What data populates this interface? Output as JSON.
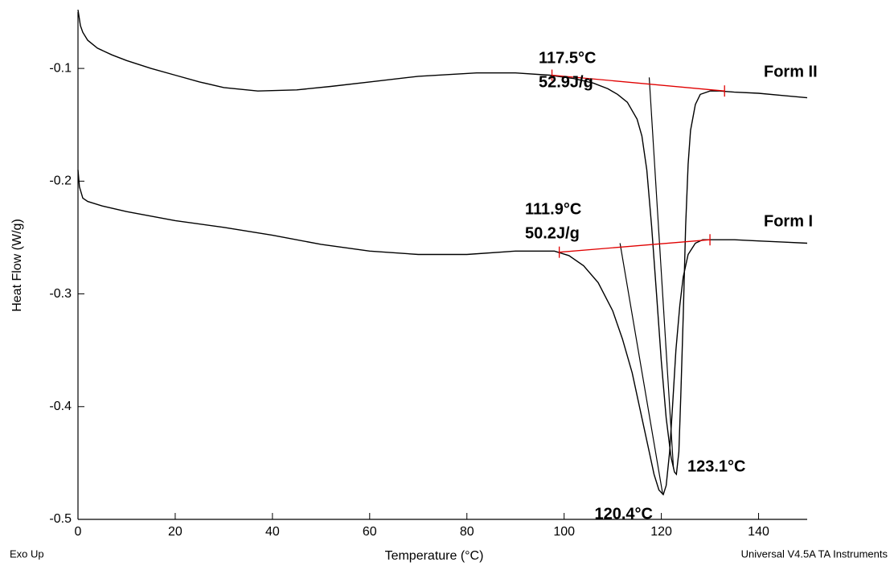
{
  "chart_data": {
    "type": "line",
    "x_label": "Temperature (°C)",
    "y_label": "Heat Flow (W/g)",
    "footer_left": "Exo Up",
    "footer_right": "Universal V4.5A TA Instruments",
    "xlim": [
      0,
      150
    ],
    "xticks": [
      0,
      20,
      40,
      60,
      80,
      100,
      120,
      140
    ],
    "ylim": [
      -0.5,
      -0.05
    ],
    "yticks": [
      -0.1,
      -0.2,
      -0.3,
      -0.4,
      -0.5
    ],
    "annotation_color": "#e00000",
    "annotations": [
      "117.5°C",
      "52.9J/g",
      "111.9°C",
      "50.2J/g",
      "120.4°C",
      "123.1°C"
    ],
    "series": [
      {
        "name": "Form II",
        "color": "#000000",
        "x": [
          0,
          0.5,
          1,
          2,
          4,
          7,
          10,
          15,
          20,
          25,
          30,
          37,
          45,
          52,
          60,
          70,
          82,
          90,
          97,
          102,
          106,
          109,
          111,
          113,
          115,
          116,
          117,
          118,
          119,
          120,
          121,
          122,
          122.7,
          123.1,
          123.6,
          124,
          124.5,
          125,
          125.5,
          126,
          127,
          128,
          130,
          132,
          135,
          140,
          145,
          150
        ],
        "values": [
          -0.048,
          -0.062,
          -0.068,
          -0.075,
          -0.082,
          -0.088,
          -0.093,
          -0.1,
          -0.106,
          -0.112,
          -0.117,
          -0.12,
          -0.119,
          -0.116,
          -0.112,
          -0.107,
          -0.104,
          -0.104,
          -0.106,
          -0.109,
          -0.113,
          -0.118,
          -0.123,
          -0.13,
          -0.145,
          -0.16,
          -0.19,
          -0.24,
          -0.3,
          -0.36,
          -0.41,
          -0.445,
          -0.458,
          -0.46,
          -0.44,
          -0.39,
          -0.32,
          -0.24,
          -0.185,
          -0.155,
          -0.132,
          -0.123,
          -0.12,
          -0.12,
          -0.121,
          -0.122,
          -0.124,
          -0.126
        ],
        "baseline": {
          "x": [
            97.5,
            133
          ],
          "y": [
            -0.106,
            -0.12
          ]
        },
        "tangent": {
          "x": [
            117.5,
            122.5
          ],
          "y": [
            -0.108,
            -0.455
          ]
        }
      },
      {
        "name": "Form I",
        "color": "#000000",
        "x": [
          0,
          0.3,
          1,
          2,
          5,
          10,
          20,
          30,
          40,
          50,
          60,
          70,
          80,
          90,
          98,
          101,
          104,
          107,
          110,
          112,
          114,
          116,
          117.5,
          118.5,
          119.5,
          120.4,
          121,
          121.7,
          122.3,
          123,
          123.8,
          124.5,
          125.5,
          127,
          128.5,
          130,
          135,
          140,
          145,
          150
        ],
        "values": [
          -0.19,
          -0.205,
          -0.215,
          -0.218,
          -0.222,
          -0.227,
          -0.235,
          -0.241,
          -0.248,
          -0.256,
          -0.262,
          -0.265,
          -0.265,
          -0.262,
          -0.262,
          -0.266,
          -0.275,
          -0.29,
          -0.315,
          -0.34,
          -0.37,
          -0.41,
          -0.44,
          -0.46,
          -0.474,
          -0.478,
          -0.47,
          -0.44,
          -0.4,
          -0.35,
          -0.31,
          -0.285,
          -0.265,
          -0.255,
          -0.252,
          -0.252,
          -0.252,
          -0.253,
          -0.254,
          -0.255
        ],
        "baseline": {
          "x": [
            99,
            130
          ],
          "y": [
            -0.263,
            -0.252
          ]
        },
        "tangent": {
          "x": [
            111.5,
            120.3
          ],
          "y": [
            -0.255,
            -0.478
          ]
        }
      }
    ]
  }
}
